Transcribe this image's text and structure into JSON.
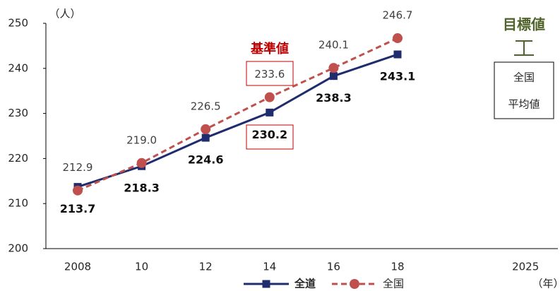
{
  "chart_data": {
    "type": "line",
    "categories": [
      "2008",
      "10",
      "12",
      "14",
      "16",
      "18",
      null,
      "2025"
    ],
    "series": [
      {
        "name": "全道",
        "color": "#1f2d6e",
        "dash": false,
        "marker": "square",
        "values": [
          213.7,
          218.3,
          224.6,
          230.2,
          238.3,
          243.1,
          null,
          null
        ]
      },
      {
        "name": "全国",
        "color": "#c0504d",
        "dash": true,
        "marker": "circle",
        "values": [
          212.9,
          219.0,
          226.5,
          233.6,
          240.1,
          246.7,
          null,
          null
        ],
        "value_labels": [
          "212.9",
          "219.0",
          "226.5",
          "233.6",
          "240.1",
          "246.7",
          null,
          null
        ]
      }
    ],
    "ylim": [
      200,
      250
    ],
    "yticks": [
      200,
      210,
      220,
      230,
      240,
      250
    ],
    "y_unit": "（人）",
    "x_unit": "（年）",
    "annotations": {
      "baseline": "基準値",
      "target": "目標値",
      "target_box": [
        "全国",
        "平均値"
      ]
    }
  }
}
